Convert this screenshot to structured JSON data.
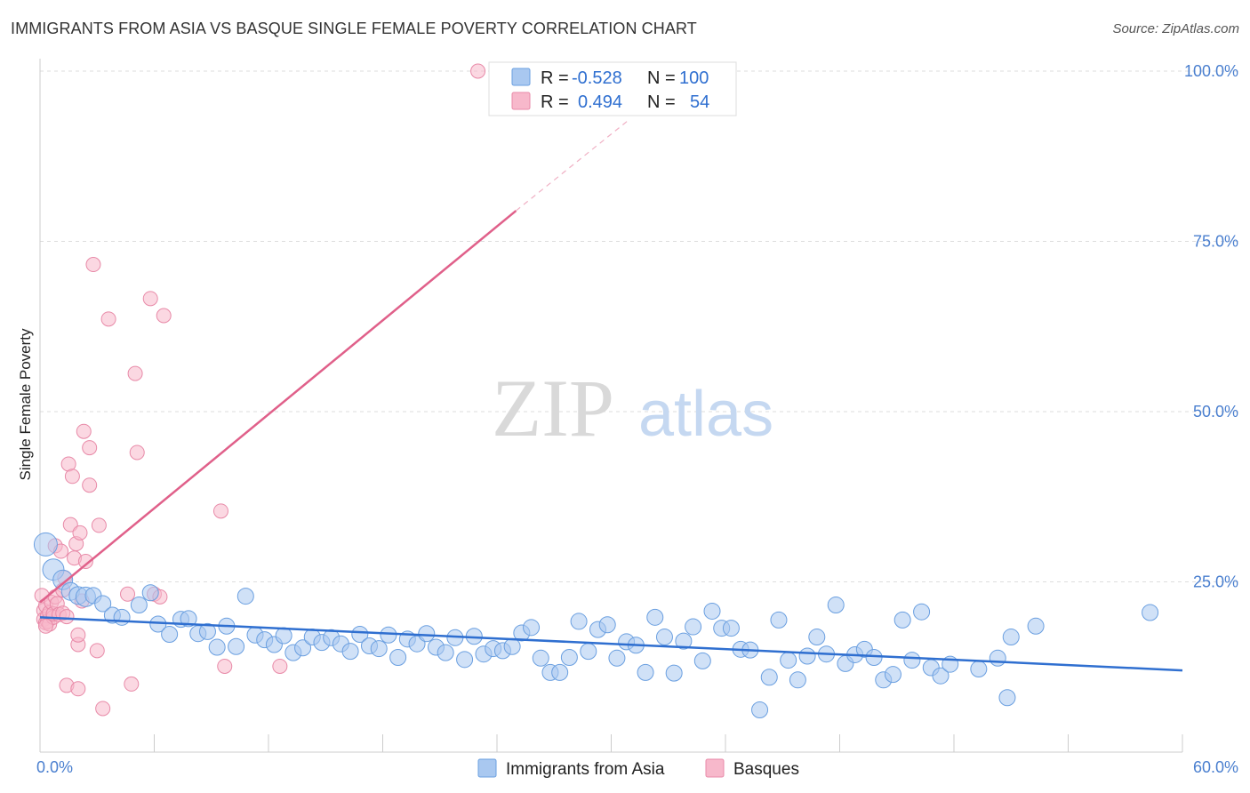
{
  "title": "IMMIGRANTS FROM ASIA VS BASQUE SINGLE FEMALE POVERTY CORRELATION CHART",
  "source": "Source: ZipAtlas.com",
  "watermark": {
    "zip": "ZIP",
    "atlas": "atlas"
  },
  "colors": {
    "blue_fill": "#a9c8f0",
    "blue_stroke": "#6a9fe0",
    "blue_line": "#2f6fd0",
    "pink_fill": "#f7b8cb",
    "pink_stroke": "#e88aa8",
    "pink_line": "#e0608a",
    "tick_text": "#4a7fcf",
    "grid": "#dddddd"
  },
  "legend": {
    "rows": [
      {
        "r_label": "R =",
        "r_value": "-0.528",
        "n_label": "N =",
        "n_value": "100"
      },
      {
        "r_label": "R =",
        "r_value": "0.494",
        "n_label": "N =",
        "n_value": "54"
      }
    ]
  },
  "chart_data": {
    "type": "scatter",
    "title": "IMMIGRANTS FROM ASIA VS BASQUE SINGLE FEMALE POVERTY CORRELATION CHART",
    "xlabel": "",
    "ylabel": "Single Female Poverty",
    "xlim": [
      0,
      60
    ],
    "ylim": [
      0,
      100
    ],
    "x_tick_labels": [
      "0.0%",
      "60.0%"
    ],
    "y_ticks": [
      25,
      50,
      75,
      100
    ],
    "y_tick_labels": [
      "25.0%",
      "50.0%",
      "75.0%",
      "100.0%"
    ],
    "series": [
      {
        "name": "Immigrants from Asia",
        "color": "#a9c8f0",
        "r": -0.528,
        "n": 100,
        "trend": {
          "x0": 0,
          "y0": 19.8,
          "x1": 60,
          "y1": 12.0
        },
        "points": [
          [
            0.3,
            30.5
          ],
          [
            0.7,
            26.8
          ],
          [
            1.2,
            25.3
          ],
          [
            1.6,
            23.6
          ],
          [
            2.0,
            23.0
          ],
          [
            2.4,
            22.8
          ],
          [
            2.8,
            23.0
          ],
          [
            3.3,
            21.8
          ],
          [
            3.8,
            20.1
          ],
          [
            4.3,
            19.8
          ],
          [
            5.2,
            21.6
          ],
          [
            5.8,
            23.4
          ],
          [
            6.2,
            18.8
          ],
          [
            6.8,
            17.3
          ],
          [
            7.4,
            19.5
          ],
          [
            7.8,
            19.6
          ],
          [
            8.3,
            17.4
          ],
          [
            8.8,
            17.7
          ],
          [
            9.3,
            15.4
          ],
          [
            9.8,
            18.5
          ],
          [
            10.3,
            15.5
          ],
          [
            10.8,
            22.9
          ],
          [
            11.3,
            17.2
          ],
          [
            11.8,
            16.5
          ],
          [
            12.3,
            15.8
          ],
          [
            12.8,
            17.1
          ],
          [
            13.3,
            14.6
          ],
          [
            13.8,
            15.3
          ],
          [
            14.3,
            16.9
          ],
          [
            14.8,
            16.1
          ],
          [
            15.3,
            16.8
          ],
          [
            15.8,
            15.9
          ],
          [
            16.3,
            14.8
          ],
          [
            16.8,
            17.3
          ],
          [
            17.3,
            15.6
          ],
          [
            17.8,
            15.2
          ],
          [
            18.3,
            17.2
          ],
          [
            18.8,
            13.9
          ],
          [
            19.3,
            16.6
          ],
          [
            19.8,
            15.9
          ],
          [
            20.3,
            17.4
          ],
          [
            20.8,
            15.4
          ],
          [
            21.3,
            14.6
          ],
          [
            21.8,
            16.8
          ],
          [
            22.3,
            13.6
          ],
          [
            22.8,
            17.0
          ],
          [
            23.3,
            14.4
          ],
          [
            23.8,
            15.2
          ],
          [
            24.3,
            14.9
          ],
          [
            24.8,
            15.5
          ],
          [
            25.3,
            17.5
          ],
          [
            25.8,
            18.3
          ],
          [
            26.3,
            13.8
          ],
          [
            26.8,
            11.7
          ],
          [
            27.3,
            11.7
          ],
          [
            27.8,
            13.9
          ],
          [
            28.3,
            19.2
          ],
          [
            28.8,
            14.8
          ],
          [
            29.3,
            18.0
          ],
          [
            29.8,
            18.7
          ],
          [
            30.3,
            13.8
          ],
          [
            30.8,
            16.2
          ],
          [
            31.3,
            15.7
          ],
          [
            31.8,
            11.7
          ],
          [
            32.3,
            19.8
          ],
          [
            32.8,
            16.9
          ],
          [
            33.3,
            11.6
          ],
          [
            33.8,
            16.3
          ],
          [
            34.3,
            18.4
          ],
          [
            34.8,
            13.4
          ],
          [
            35.3,
            20.7
          ],
          [
            35.8,
            18.2
          ],
          [
            36.3,
            18.2
          ],
          [
            36.8,
            15.1
          ],
          [
            37.3,
            15.0
          ],
          [
            37.8,
            6.2
          ],
          [
            38.3,
            11.0
          ],
          [
            38.8,
            19.4
          ],
          [
            39.3,
            13.5
          ],
          [
            39.8,
            10.6
          ],
          [
            40.3,
            14.1
          ],
          [
            40.8,
            16.9
          ],
          [
            41.3,
            14.4
          ],
          [
            41.8,
            21.6
          ],
          [
            42.3,
            13.0
          ],
          [
            42.8,
            14.3
          ],
          [
            43.3,
            15.1
          ],
          [
            43.8,
            13.9
          ],
          [
            44.3,
            10.6
          ],
          [
            44.8,
            11.4
          ],
          [
            45.3,
            19.4
          ],
          [
            45.8,
            13.5
          ],
          [
            46.3,
            20.6
          ],
          [
            46.8,
            12.4
          ],
          [
            47.3,
            11.2
          ],
          [
            47.8,
            12.9
          ],
          [
            49.3,
            12.2
          ],
          [
            50.3,
            13.8
          ],
          [
            50.8,
            8.0
          ],
          [
            51.0,
            16.9
          ],
          [
            52.3,
            18.5
          ],
          [
            58.3,
            20.5
          ]
        ]
      },
      {
        "name": "Basques",
        "color": "#f7b8cb",
        "r": 0.494,
        "n": 54,
        "trend": {
          "x0": 0,
          "y0": 22.0,
          "x1": 25.0,
          "y1": 79.5,
          "ext_x1": 31.0,
          "ext_y1": 93.0
        },
        "points": [
          [
            0.1,
            23.0
          ],
          [
            0.2,
            20.8
          ],
          [
            0.2,
            19.5
          ],
          [
            0.3,
            19.0
          ],
          [
            0.3,
            21.5
          ],
          [
            0.4,
            20.0
          ],
          [
            0.4,
            19.2
          ],
          [
            0.5,
            18.8
          ],
          [
            0.5,
            20.5
          ],
          [
            0.6,
            22.0
          ],
          [
            0.7,
            19.8
          ],
          [
            0.7,
            20.3
          ],
          [
            0.8,
            22.8
          ],
          [
            0.8,
            30.3
          ],
          [
            0.9,
            21.8
          ],
          [
            1.0,
            20.2
          ],
          [
            1.1,
            29.5
          ],
          [
            1.2,
            23.8
          ],
          [
            1.2,
            20.4
          ],
          [
            1.3,
            25.6
          ],
          [
            1.4,
            9.8
          ],
          [
            1.4,
            19.9
          ],
          [
            1.5,
            42.3
          ],
          [
            1.6,
            33.4
          ],
          [
            1.7,
            40.5
          ],
          [
            1.8,
            28.5
          ],
          [
            1.9,
            30.6
          ],
          [
            2.0,
            15.8
          ],
          [
            2.0,
            17.2
          ],
          [
            2.0,
            9.3
          ],
          [
            2.1,
            32.2
          ],
          [
            2.2,
            22.2
          ],
          [
            2.3,
            47.1
          ],
          [
            2.4,
            28.0
          ],
          [
            2.6,
            44.7
          ],
          [
            2.6,
            39.2
          ],
          [
            2.8,
            71.6
          ],
          [
            3.0,
            14.9
          ],
          [
            3.1,
            33.3
          ],
          [
            3.3,
            6.4
          ],
          [
            3.6,
            63.6
          ],
          [
            4.6,
            23.2
          ],
          [
            4.8,
            10.0
          ],
          [
            5.0,
            55.6
          ],
          [
            5.1,
            44.0
          ],
          [
            5.8,
            66.6
          ],
          [
            6.0,
            23.2
          ],
          [
            6.3,
            22.8
          ],
          [
            6.5,
            64.1
          ],
          [
            9.5,
            35.4
          ],
          [
            9.7,
            12.6
          ],
          [
            12.6,
            12.6
          ],
          [
            23.0,
            100.0
          ],
          [
            0.3,
            18.5
          ]
        ]
      }
    ]
  },
  "bottom_legend": {
    "items": [
      {
        "label": "Immigrants from Asia"
      },
      {
        "label": "Basques"
      }
    ]
  }
}
